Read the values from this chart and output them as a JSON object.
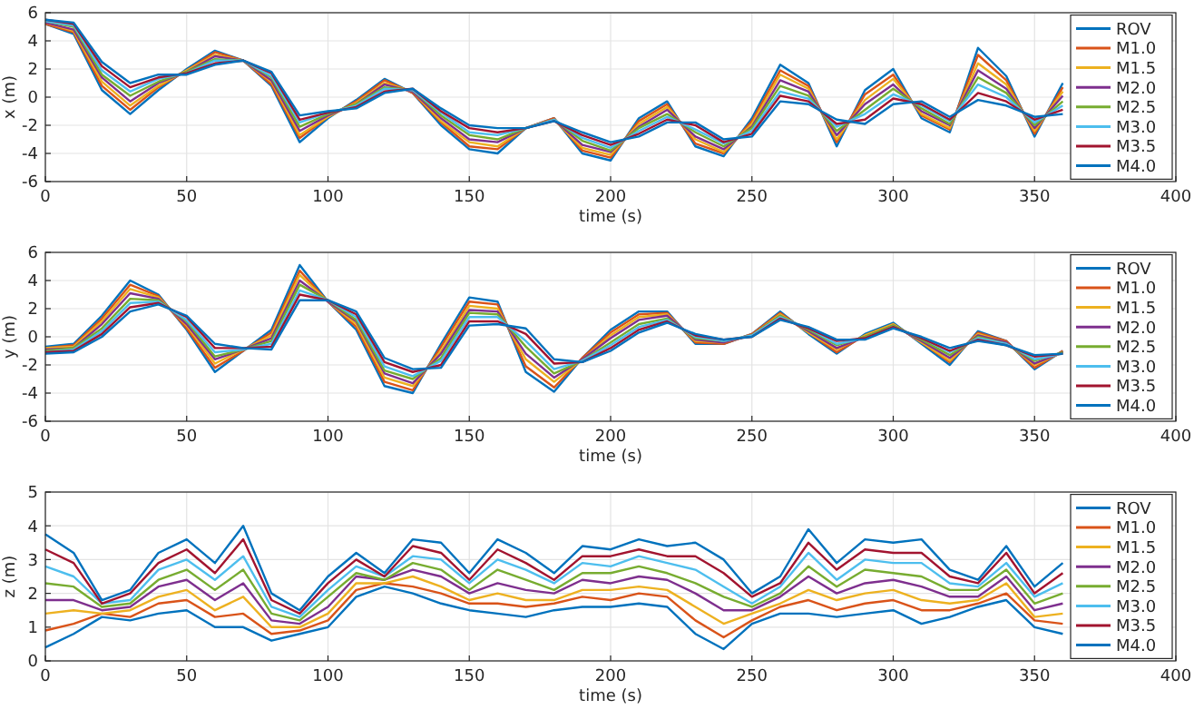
{
  "chart_data": [
    {
      "type": "line",
      "xlabel": "time (s)",
      "ylabel": "x (m)",
      "xlim": [
        0,
        400
      ],
      "xticks": [
        0,
        50,
        100,
        150,
        200,
        250,
        300,
        350,
        400
      ],
      "ylim": [
        -6,
        6
      ],
      "yticks": [
        -6,
        -4,
        -2,
        0,
        2,
        4,
        6
      ],
      "grid": true,
      "legend": "right",
      "x": [
        0,
        10,
        20,
        30,
        40,
        50,
        60,
        70,
        80,
        90,
        100,
        110,
        120,
        130,
        140,
        150,
        160,
        170,
        180,
        190,
        200,
        210,
        220,
        230,
        240,
        250,
        260,
        270,
        280,
        290,
        300,
        310,
        320,
        330,
        340,
        350,
        360
      ],
      "series": [
        {
          "name": "ROV",
          "color": "#0072bd",
          "values": [
            5.2,
            4.5,
            0.5,
            -1.2,
            0.5,
            2.0,
            3.3,
            2.6,
            0.8,
            -3.2,
            -1.5,
            -0.2,
            1.3,
            0.3,
            -2.0,
            -3.7,
            -4.0,
            -2.2,
            -1.5,
            -4.0,
            -4.5,
            -1.5,
            -0.3,
            -3.5,
            -4.2,
            -1.5,
            2.3,
            1.0,
            -3.5,
            0.5,
            2.0,
            -1.5,
            -2.5,
            3.5,
            1.5,
            -2.8,
            1.0
          ]
        },
        {
          "name": "M1.0",
          "color": "#d95319",
          "values": [
            5.2,
            4.6,
            0.8,
            -0.9,
            0.7,
            1.9,
            3.2,
            2.6,
            0.9,
            -2.9,
            -1.4,
            -0.3,
            1.2,
            0.3,
            -1.8,
            -3.5,
            -3.7,
            -2.2,
            -1.5,
            -3.8,
            -4.3,
            -1.7,
            -0.5,
            -3.3,
            -4.0,
            -1.7,
            1.9,
            0.8,
            -3.2,
            0.2,
            1.6,
            -1.3,
            -2.3,
            3.0,
            1.2,
            -2.6,
            0.7
          ]
        },
        {
          "name": "M1.5",
          "color": "#edb120",
          "values": [
            5.3,
            4.7,
            1.1,
            -0.6,
            0.8,
            1.9,
            3.0,
            2.6,
            1.1,
            -2.7,
            -1.4,
            -0.4,
            1.0,
            0.4,
            -1.7,
            -3.2,
            -3.5,
            -2.2,
            -1.6,
            -3.6,
            -4.1,
            -1.9,
            -0.7,
            -3.0,
            -3.9,
            -1.9,
            1.6,
            0.6,
            -3.0,
            -0.2,
            1.3,
            -1.2,
            -2.2,
            2.4,
            0.9,
            -2.4,
            0.4
          ]
        },
        {
          "name": "M2.0",
          "color": "#7e2f8e",
          "values": [
            5.3,
            4.8,
            1.4,
            -0.3,
            1.0,
            1.8,
            2.9,
            2.6,
            1.2,
            -2.4,
            -1.3,
            -0.5,
            0.9,
            0.4,
            -1.5,
            -3.0,
            -3.2,
            -2.2,
            -1.6,
            -3.4,
            -3.9,
            -2.1,
            -0.9,
            -2.8,
            -3.7,
            -2.1,
            1.2,
            0.4,
            -2.7,
            -0.5,
            0.9,
            -1.0,
            -2.0,
            1.9,
            0.6,
            -2.2,
            0.1
          ]
        },
        {
          "name": "M2.5",
          "color": "#77ac30",
          "values": [
            5.4,
            5.0,
            1.6,
            0.1,
            1.1,
            1.8,
            2.7,
            2.6,
            1.4,
            -2.1,
            -1.2,
            -0.5,
            0.7,
            0.5,
            -1.3,
            -2.7,
            -3.0,
            -2.2,
            -1.6,
            -3.1,
            -3.8,
            -2.2,
            -1.2,
            -2.5,
            -3.5,
            -2.2,
            0.8,
            0.1,
            -2.4,
            -0.9,
            0.6,
            -0.8,
            -1.9,
            1.4,
            0.3,
            -2.0,
            -0.3
          ]
        },
        {
          "name": "M3.0",
          "color": "#4dbeee",
          "values": [
            5.4,
            5.1,
            1.9,
            0.4,
            1.3,
            1.7,
            2.6,
            2.6,
            1.5,
            -1.8,
            -1.1,
            -0.6,
            0.6,
            0.5,
            -1.1,
            -2.5,
            -2.7,
            -2.2,
            -1.6,
            -2.9,
            -3.6,
            -2.4,
            -1.4,
            -2.3,
            -3.3,
            -2.4,
            0.4,
            -0.1,
            -2.1,
            -1.2,
            0.2,
            -0.6,
            -1.7,
            0.9,
            0.0,
            -1.8,
            -0.6
          ]
        },
        {
          "name": "M3.5",
          "color": "#a2142f",
          "values": [
            5.5,
            5.2,
            2.2,
            0.7,
            1.4,
            1.7,
            2.4,
            2.6,
            1.7,
            -1.6,
            -1.1,
            -0.7,
            0.4,
            0.6,
            -1.0,
            -2.2,
            -2.5,
            -2.2,
            -1.7,
            -2.7,
            -3.4,
            -2.6,
            -1.6,
            -2.0,
            -3.2,
            -2.6,
            0.1,
            -0.3,
            -1.9,
            -1.6,
            -0.1,
            -0.5,
            -1.6,
            0.3,
            -0.3,
            -1.6,
            -0.9
          ]
        },
        {
          "name": "M4.0",
          "color": "#0072bd",
          "values": [
            5.5,
            5.3,
            2.5,
            1.0,
            1.6,
            1.6,
            2.3,
            2.6,
            1.8,
            -1.3,
            -1.0,
            -0.8,
            0.3,
            0.6,
            -0.8,
            -2.0,
            -2.2,
            -2.2,
            -1.7,
            -2.5,
            -3.2,
            -2.8,
            -1.8,
            -1.8,
            -3.0,
            -2.8,
            -0.3,
            -0.5,
            -1.6,
            -1.9,
            -0.5,
            -0.3,
            -1.4,
            -0.2,
            -0.6,
            -1.4,
            -1.2
          ]
        }
      ]
    },
    {
      "type": "line",
      "xlabel": "time (s)",
      "ylabel": "y (m)",
      "xlim": [
        0,
        400
      ],
      "xticks": [
        0,
        50,
        100,
        150,
        200,
        250,
        300,
        350,
        400
      ],
      "ylim": [
        -6,
        6
      ],
      "yticks": [
        -6,
        -4,
        -2,
        0,
        2,
        4,
        6
      ],
      "grid": true,
      "legend": "right",
      "x": [
        0,
        10,
        20,
        30,
        40,
        50,
        60,
        70,
        80,
        90,
        100,
        110,
        120,
        130,
        140,
        150,
        160,
        170,
        180,
        190,
        200,
        210,
        220,
        230,
        240,
        250,
        260,
        270,
        280,
        290,
        300,
        310,
        320,
        330,
        340,
        350,
        360
      ],
      "series": [
        {
          "name": "ROV",
          "color": "#0072bd",
          "values": [
            -0.7,
            -0.5,
            1.5,
            4.0,
            3.0,
            0.5,
            -2.5,
            -1.0,
            0.5,
            5.1,
            2.5,
            0.5,
            -3.5,
            -4.0,
            -0.5,
            2.8,
            2.5,
            -2.5,
            -3.9,
            -1.5,
            0.5,
            1.8,
            1.8,
            -0.5,
            -0.5,
            0.2,
            1.8,
            0.2,
            -1.2,
            0.2,
            1.0,
            -0.5,
            -2.0,
            0.4,
            -0.3,
            -2.3,
            -1.0
          ]
        },
        {
          "name": "M1.0",
          "color": "#d95319",
          "values": [
            -0.8,
            -0.6,
            1.3,
            3.7,
            2.9,
            0.6,
            -2.2,
            -1.0,
            0.3,
            4.7,
            2.5,
            0.7,
            -3.2,
            -3.8,
            -0.7,
            2.5,
            2.3,
            -2.1,
            -3.6,
            -1.5,
            0.3,
            1.6,
            1.7,
            -0.4,
            -0.5,
            0.2,
            1.7,
            0.3,
            -1.1,
            0.1,
            0.9,
            -0.4,
            -1.8,
            0.3,
            -0.3,
            -2.2,
            -1.0
          ]
        },
        {
          "name": "M1.5",
          "color": "#edb120",
          "values": [
            -0.8,
            -0.7,
            1.1,
            3.4,
            2.8,
            0.8,
            -1.9,
            -0.9,
            0.1,
            4.4,
            2.5,
            0.9,
            -2.9,
            -3.5,
            -1.0,
            2.2,
            2.0,
            -1.6,
            -3.2,
            -1.6,
            0.1,
            1.4,
            1.6,
            -0.3,
            -0.4,
            0.1,
            1.6,
            0.3,
            -0.9,
            0.1,
            0.9,
            -0.4,
            -1.7,
            0.2,
            -0.4,
            -2.0,
            -1.1
          ]
        },
        {
          "name": "M2.0",
          "color": "#7e2f8e",
          "values": [
            -0.9,
            -0.8,
            0.9,
            3.1,
            2.7,
            0.9,
            -1.6,
            -0.9,
            -0.1,
            4.0,
            2.5,
            1.1,
            -2.6,
            -3.3,
            -1.2,
            1.9,
            1.8,
            -1.2,
            -2.9,
            -1.6,
            -0.1,
            1.2,
            1.5,
            -0.2,
            -0.4,
            0.1,
            1.5,
            0.4,
            -0.8,
            0.0,
            0.8,
            -0.3,
            -1.5,
            0.1,
            -0.4,
            -1.9,
            -1.1
          ]
        },
        {
          "name": "M2.5",
          "color": "#77ac30",
          "values": [
            -1.0,
            -0.8,
            0.6,
            2.7,
            2.6,
            1.1,
            -1.4,
            -0.9,
            -0.3,
            3.7,
            2.6,
            1.2,
            -2.4,
            -3.0,
            -1.5,
            1.7,
            1.6,
            -0.7,
            -2.6,
            -1.7,
            -0.4,
            0.9,
            1.3,
            -0.1,
            -0.3,
            0.1,
            1.5,
            0.5,
            -0.6,
            0.0,
            0.8,
            -0.2,
            -1.3,
            0.0,
            -0.5,
            -1.7,
            -1.1
          ]
        },
        {
          "name": "M3.0",
          "color": "#4dbeee",
          "values": [
            -1.1,
            -0.9,
            0.4,
            2.4,
            2.5,
            1.2,
            -1.1,
            -0.9,
            -0.5,
            3.3,
            2.6,
            1.4,
            -2.1,
            -2.8,
            -1.7,
            1.4,
            1.4,
            -0.3,
            -2.3,
            -1.7,
            -0.6,
            0.7,
            1.2,
            0.0,
            -0.3,
            0.1,
            1.4,
            0.6,
            -0.5,
            -0.1,
            0.7,
            -0.1,
            -1.1,
            -0.1,
            -0.5,
            -1.6,
            -1.2
          ]
        },
        {
          "name": "M3.5",
          "color": "#a2142f",
          "values": [
            -1.1,
            -1.0,
            0.2,
            2.1,
            2.4,
            1.4,
            -0.8,
            -0.8,
            -0.7,
            3.0,
            2.6,
            1.6,
            -1.8,
            -2.5,
            -2.0,
            1.1,
            1.1,
            0.2,
            -1.9,
            -1.8,
            -0.8,
            0.5,
            1.1,
            0.1,
            -0.2,
            0.0,
            1.3,
            0.6,
            -0.3,
            -0.1,
            0.7,
            -0.1,
            -1.0,
            -0.2,
            -0.6,
            -1.4,
            -1.2
          ]
        },
        {
          "name": "M4.0",
          "color": "#0072bd",
          "values": [
            -1.2,
            -1.1,
            0.0,
            1.8,
            2.3,
            1.5,
            -0.5,
            -0.8,
            -0.9,
            2.6,
            2.6,
            1.8,
            -1.5,
            -2.3,
            -2.2,
            0.8,
            0.9,
            0.6,
            -1.6,
            -1.8,
            -1.0,
            0.3,
            1.0,
            0.2,
            -0.2,
            0.0,
            1.2,
            0.7,
            -0.2,
            -0.2,
            0.6,
            0.0,
            -0.8,
            -0.3,
            -0.6,
            -1.3,
            -1.2
          ]
        }
      ]
    },
    {
      "type": "line",
      "xlabel": "time (s)",
      "ylabel": "z (m)",
      "xlim": [
        0,
        400
      ],
      "xticks": [
        0,
        50,
        100,
        150,
        200,
        250,
        300,
        350,
        400
      ],
      "ylim": [
        0,
        5
      ],
      "yticks": [
        0,
        1,
        2,
        3,
        4,
        5
      ],
      "grid": true,
      "legend": "right",
      "x": [
        0,
        10,
        20,
        30,
        40,
        50,
        60,
        70,
        80,
        90,
        100,
        110,
        120,
        130,
        140,
        150,
        160,
        170,
        180,
        190,
        200,
        210,
        220,
        230,
        240,
        250,
        260,
        270,
        280,
        290,
        300,
        310,
        320,
        330,
        340,
        350,
        360
      ],
      "series": [
        {
          "name": "ROV",
          "color": "#0072bd",
          "values": [
            0.4,
            0.8,
            1.3,
            1.2,
            1.4,
            1.5,
            1.0,
            1.0,
            0.6,
            0.8,
            1.0,
            1.9,
            2.2,
            2.0,
            1.7,
            1.5,
            1.4,
            1.3,
            1.5,
            1.6,
            1.6,
            1.7,
            1.6,
            0.8,
            0.35,
            1.1,
            1.4,
            1.4,
            1.3,
            1.4,
            1.5,
            1.1,
            1.3,
            1.6,
            1.8,
            1.0,
            0.8
          ]
        },
        {
          "name": "M1.0",
          "color": "#d95319",
          "values": [
            0.9,
            1.1,
            1.4,
            1.3,
            1.7,
            1.8,
            1.3,
            1.4,
            0.8,
            0.9,
            1.2,
            2.1,
            2.3,
            2.2,
            2.0,
            1.7,
            1.7,
            1.6,
            1.7,
            1.9,
            1.8,
            2.0,
            1.9,
            1.2,
            0.7,
            1.2,
            1.6,
            1.8,
            1.5,
            1.7,
            1.8,
            1.5,
            1.5,
            1.7,
            2.0,
            1.2,
            1.1
          ]
        },
        {
          "name": "M1.5",
          "color": "#edb120",
          "values": [
            1.4,
            1.5,
            1.4,
            1.5,
            1.9,
            2.1,
            1.5,
            1.9,
            1.0,
            1.0,
            1.4,
            2.3,
            2.3,
            2.5,
            2.2,
            1.8,
            2.0,
            1.8,
            1.8,
            2.1,
            2.1,
            2.2,
            2.1,
            1.6,
            1.1,
            1.4,
            1.7,
            2.1,
            1.8,
            2.0,
            2.1,
            1.8,
            1.7,
            1.8,
            2.3,
            1.3,
            1.4
          ]
        },
        {
          "name": "M2.0",
          "color": "#7e2f8e",
          "values": [
            1.8,
            1.8,
            1.5,
            1.6,
            2.2,
            2.4,
            1.8,
            2.3,
            1.2,
            1.1,
            1.6,
            2.5,
            2.4,
            2.7,
            2.5,
            2.0,
            2.3,
            2.1,
            2.0,
            2.4,
            2.3,
            2.5,
            2.4,
            2.0,
            1.5,
            1.5,
            1.9,
            2.5,
            2.0,
            2.3,
            2.4,
            2.2,
            1.9,
            1.9,
            2.5,
            1.5,
            1.7
          ]
        },
        {
          "name": "M2.5",
          "color": "#77ac30",
          "values": [
            2.3,
            2.2,
            1.6,
            1.7,
            2.4,
            2.7,
            2.1,
            2.7,
            1.4,
            1.2,
            1.9,
            2.6,
            2.4,
            2.9,
            2.7,
            2.1,
            2.7,
            2.4,
            2.1,
            2.6,
            2.6,
            2.8,
            2.6,
            2.3,
            1.9,
            1.6,
            2.0,
            2.8,
            2.2,
            2.7,
            2.6,
            2.5,
            2.1,
            2.1,
            2.7,
            1.7,
            2.0
          ]
        },
        {
          "name": "M3.0",
          "color": "#4dbeee",
          "values": [
            2.8,
            2.5,
            1.7,
            1.8,
            2.7,
            3.0,
            2.4,
            3.1,
            1.6,
            1.3,
            2.1,
            2.8,
            2.5,
            3.1,
            3.0,
            2.3,
            3.0,
            2.7,
            2.3,
            2.9,
            2.8,
            3.1,
            2.9,
            2.7,
            2.2,
            1.7,
            2.2,
            3.2,
            2.4,
            3.0,
            2.9,
            2.9,
            2.3,
            2.2,
            2.9,
            1.9,
            2.3
          ]
        },
        {
          "name": "M3.5",
          "color": "#a2142f",
          "values": [
            3.3,
            2.9,
            1.7,
            2.0,
            2.9,
            3.3,
            2.6,
            3.6,
            1.8,
            1.4,
            2.3,
            3.0,
            2.5,
            3.4,
            3.2,
            2.4,
            3.3,
            2.9,
            2.4,
            3.1,
            3.1,
            3.3,
            3.1,
            3.1,
            2.6,
            1.9,
            2.3,
            3.5,
            2.7,
            3.3,
            3.2,
            3.2,
            2.5,
            2.3,
            3.2,
            2.0,
            2.6
          ]
        },
        {
          "name": "M4.0",
          "color": "#0072bd",
          "values": [
            3.75,
            3.2,
            1.8,
            2.1,
            3.2,
            3.6,
            2.9,
            4.0,
            2.0,
            1.5,
            2.5,
            3.2,
            2.6,
            3.6,
            3.5,
            2.6,
            3.6,
            3.2,
            2.6,
            3.4,
            3.3,
            3.6,
            3.4,
            3.5,
            3.0,
            2.0,
            2.5,
            3.9,
            2.9,
            3.6,
            3.5,
            3.6,
            2.7,
            2.4,
            3.4,
            2.2,
            2.9
          ]
        }
      ]
    }
  ]
}
